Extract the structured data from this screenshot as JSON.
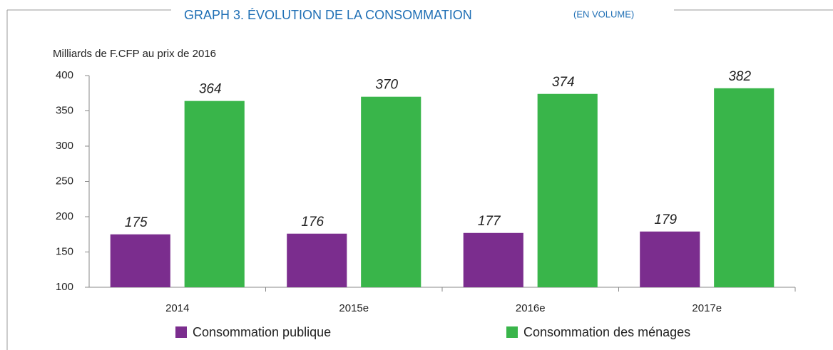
{
  "chart_data": {
    "type": "bar",
    "title": "GRAPH 3. ÉVOLUTION DE LA CONSOMMATION",
    "subtitle": "(EN VOLUME)",
    "y_label": "Milliards de F.CFP au prix de 2016",
    "categories": [
      "2014",
      "2015e",
      "2016e",
      "2017e"
    ],
    "series": [
      {
        "name": "Consommation publique",
        "color": "#7b2d8e",
        "values": [
          175,
          176,
          177,
          179
        ]
      },
      {
        "name": "Consommation des ménages",
        "color": "#39b54a",
        "values": [
          364,
          370,
          374,
          382
        ]
      }
    ],
    "ylim": [
      100,
      400
    ],
    "yticks": [
      100,
      150,
      200,
      250,
      300,
      350,
      400
    ],
    "grid": false,
    "legend": "bottom"
  }
}
